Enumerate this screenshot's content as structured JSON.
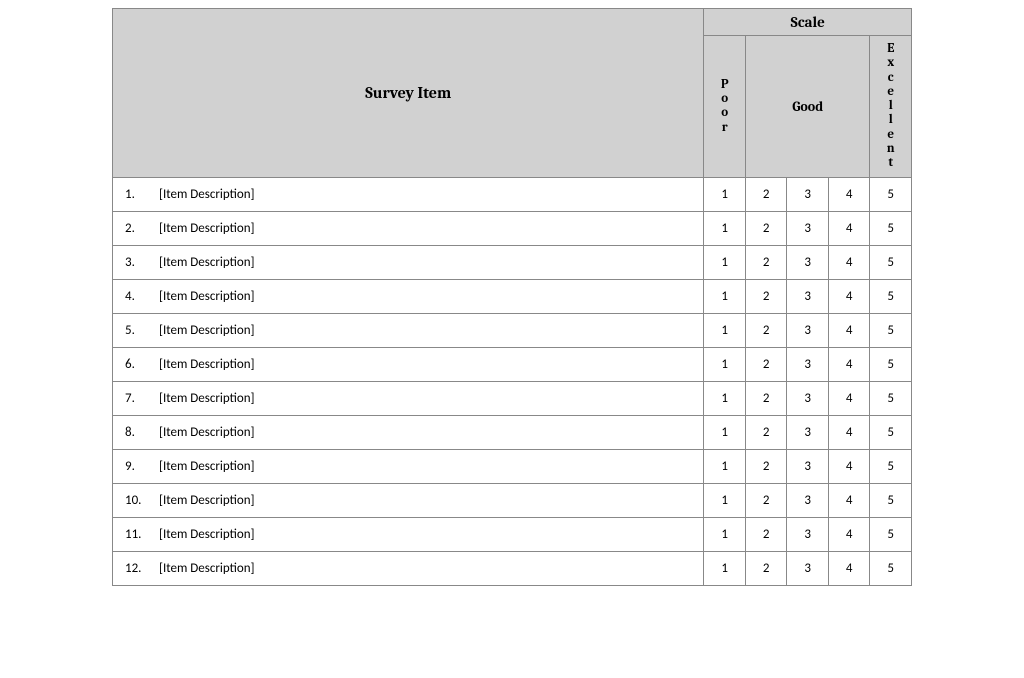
{
  "table": {
    "headers": {
      "survey_item": "Survey Item",
      "scale": "Scale",
      "poor": "Poor",
      "good": "Good",
      "excellent": "Excellent"
    },
    "colors": {
      "header_bg": "#d1d1d1",
      "border": "#888888",
      "background": "#ffffff",
      "text": "#000000"
    },
    "col_widths": {
      "item": 570,
      "scale_cell": 40
    },
    "fontsize": {
      "item_header": 16,
      "scale_header": 15,
      "vertical_header": 13,
      "good_header": 14,
      "row": 13
    },
    "font_family": {
      "header": "Cambria, Georgia, serif",
      "body": "Calibri, Arial, sans-serif"
    },
    "scale_values": [
      "1",
      "2",
      "3",
      "4",
      "5"
    ],
    "rows": [
      {
        "num": "1.",
        "desc": "[Item Description]"
      },
      {
        "num": "2.",
        "desc": "[Item Description]"
      },
      {
        "num": "3.",
        "desc": "[Item Description]"
      },
      {
        "num": "4.",
        "desc": "[Item Description]"
      },
      {
        "num": "5.",
        "desc": "[Item Description]"
      },
      {
        "num": "6.",
        "desc": "[Item Description]"
      },
      {
        "num": "7.",
        "desc": "[Item Description]"
      },
      {
        "num": "8.",
        "desc": "[Item Description]"
      },
      {
        "num": "9.",
        "desc": "[Item Description]"
      },
      {
        "num": "10.",
        "desc": "[Item Description]"
      },
      {
        "num": "11.",
        "desc": "[Item Description]"
      },
      {
        "num": "12.",
        "desc": "[Item Description]"
      }
    ]
  }
}
